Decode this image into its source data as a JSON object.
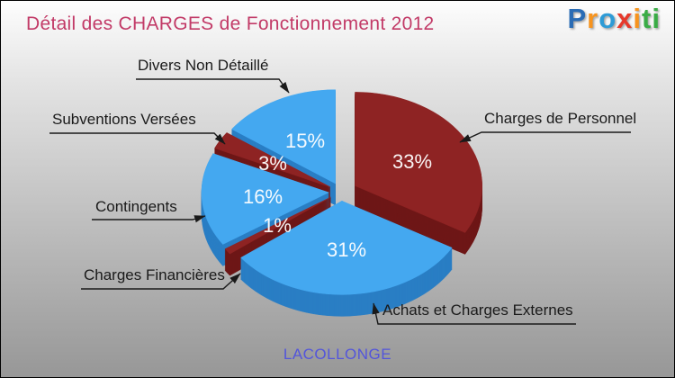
{
  "title": "Détail des CHARGES de Fonctionnement 2012",
  "footer": "LACOLLONGE",
  "logo": {
    "name": "proxiti",
    "letters": [
      {
        "char": "P",
        "color": "#2A6CB5"
      },
      {
        "char": "r",
        "color": "#F7941E"
      },
      {
        "char": "o",
        "color": "#2E9BD6"
      },
      {
        "char": "x",
        "color": "#E6392B"
      },
      {
        "char": "i",
        "color": "#F7941E"
      },
      {
        "char": "t",
        "color": "#3AAC46"
      },
      {
        "char": "i",
        "color": "#3AAC46"
      }
    ]
  },
  "colors": {
    "title": "#C23A67",
    "footer": "#5355DB",
    "callout_text": "#1A1A1A",
    "leader_line": "#1A1A1A",
    "percent_text": "#FFFFFF",
    "blue_top": "#44A8F0",
    "blue_side": "#2A7EC4",
    "red_top": "#8E2323",
    "red_side": "#6E1717",
    "background_top": "#FDFDFD",
    "background_bottom": "#979797"
  },
  "chart_data": {
    "type": "pie",
    "style": "3d-exploded",
    "title": "Détail des CHARGES de Fonctionnement 2012",
    "unit": "%",
    "start_angle_deg": 0,
    "direction": "clockwise",
    "legend_position": "callouts",
    "slices": [
      {
        "label": "Charges de Personnel",
        "value": 33,
        "color": "#8E2323"
      },
      {
        "label": "Achats et Charges Externes",
        "value": 31,
        "color": "#44A8F0"
      },
      {
        "label": "Charges Financières",
        "value": 1,
        "color": "#8E2323"
      },
      {
        "label": "Contingents",
        "value": 16,
        "color": "#44A8F0"
      },
      {
        "label": "Subventions Versées",
        "value": 3,
        "color": "#8E2323"
      },
      {
        "label": "Divers Non Détaillé",
        "value": 15,
        "color": "#44A8F0"
      }
    ]
  }
}
